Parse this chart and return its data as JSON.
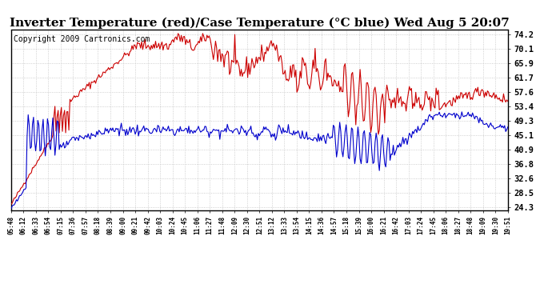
{
  "title": "Inverter Temperature (red)/Case Temperature (°C blue) Wed Aug 5 20:07",
  "copyright": "Copyright 2009 Cartronics.com",
  "yticks": [
    24.3,
    28.5,
    32.6,
    36.8,
    40.9,
    45.1,
    49.3,
    53.4,
    57.6,
    61.7,
    65.9,
    70.1,
    74.2
  ],
  "xtick_labels": [
    "05:48",
    "06:12",
    "06:33",
    "06:54",
    "07:15",
    "07:36",
    "07:57",
    "08:18",
    "08:39",
    "09:00",
    "09:21",
    "09:42",
    "10:03",
    "10:24",
    "10:45",
    "11:06",
    "11:27",
    "11:48",
    "12:09",
    "12:30",
    "12:51",
    "13:12",
    "13:33",
    "13:54",
    "14:15",
    "14:36",
    "14:57",
    "15:18",
    "15:39",
    "16:00",
    "16:21",
    "16:42",
    "17:03",
    "17:24",
    "17:45",
    "18:06",
    "18:27",
    "18:48",
    "19:09",
    "19:30",
    "19:51"
  ],
  "ylim": [
    23.5,
    75.5
  ],
  "red_color": "#cc0000",
  "blue_color": "#0000cc",
  "bg_color": "#ffffff",
  "grid_color": "#bbbbbb",
  "title_fontsize": 11,
  "copyright_fontsize": 7
}
